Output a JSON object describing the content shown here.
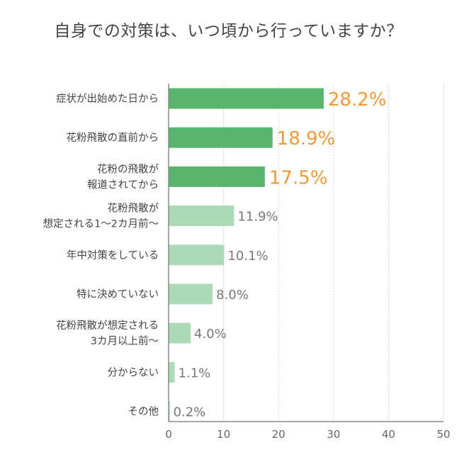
{
  "chart_data": {
    "type": "bar",
    "orientation": "horizontal",
    "title": "自身での対策は、いつ頃から行っていますか？",
    "categories": [
      [
        "症状が出始めた日から"
      ],
      [
        "花粉飛散の直前から"
      ],
      [
        "花粉の飛散が",
        "報道されてから"
      ],
      [
        "花粉飛散が",
        "想定される1〜2カ月前〜"
      ],
      [
        "年中対策をしている"
      ],
      [
        "特に決めていない"
      ],
      [
        "花粉飛散が想定される",
        "3カ月以上前〜"
      ],
      [
        "分からない"
      ],
      [
        "その他"
      ]
    ],
    "values": [
      28.2,
      18.9,
      17.5,
      11.9,
      10.1,
      8.0,
      4.0,
      1.1,
      0.2
    ],
    "value_labels": [
      "28.2%",
      "18.9%",
      "17.5%",
      "11.9%",
      "10.1%",
      "8.0%",
      "4.0%",
      "1.1%",
      "0.2%"
    ],
    "highlight_top": 3,
    "xlim": [
      0,
      50
    ],
    "xticks": [
      "0",
      "10",
      "20",
      "30",
      "40",
      "50"
    ],
    "grid": true,
    "colors": {
      "highlight_bar": "#58b56e",
      "normal_bar": "#acdab6",
      "highlight_label": "#ee9a3a",
      "normal_label": "#777777",
      "axis": "#888888",
      "grid": "#cccccc"
    }
  }
}
